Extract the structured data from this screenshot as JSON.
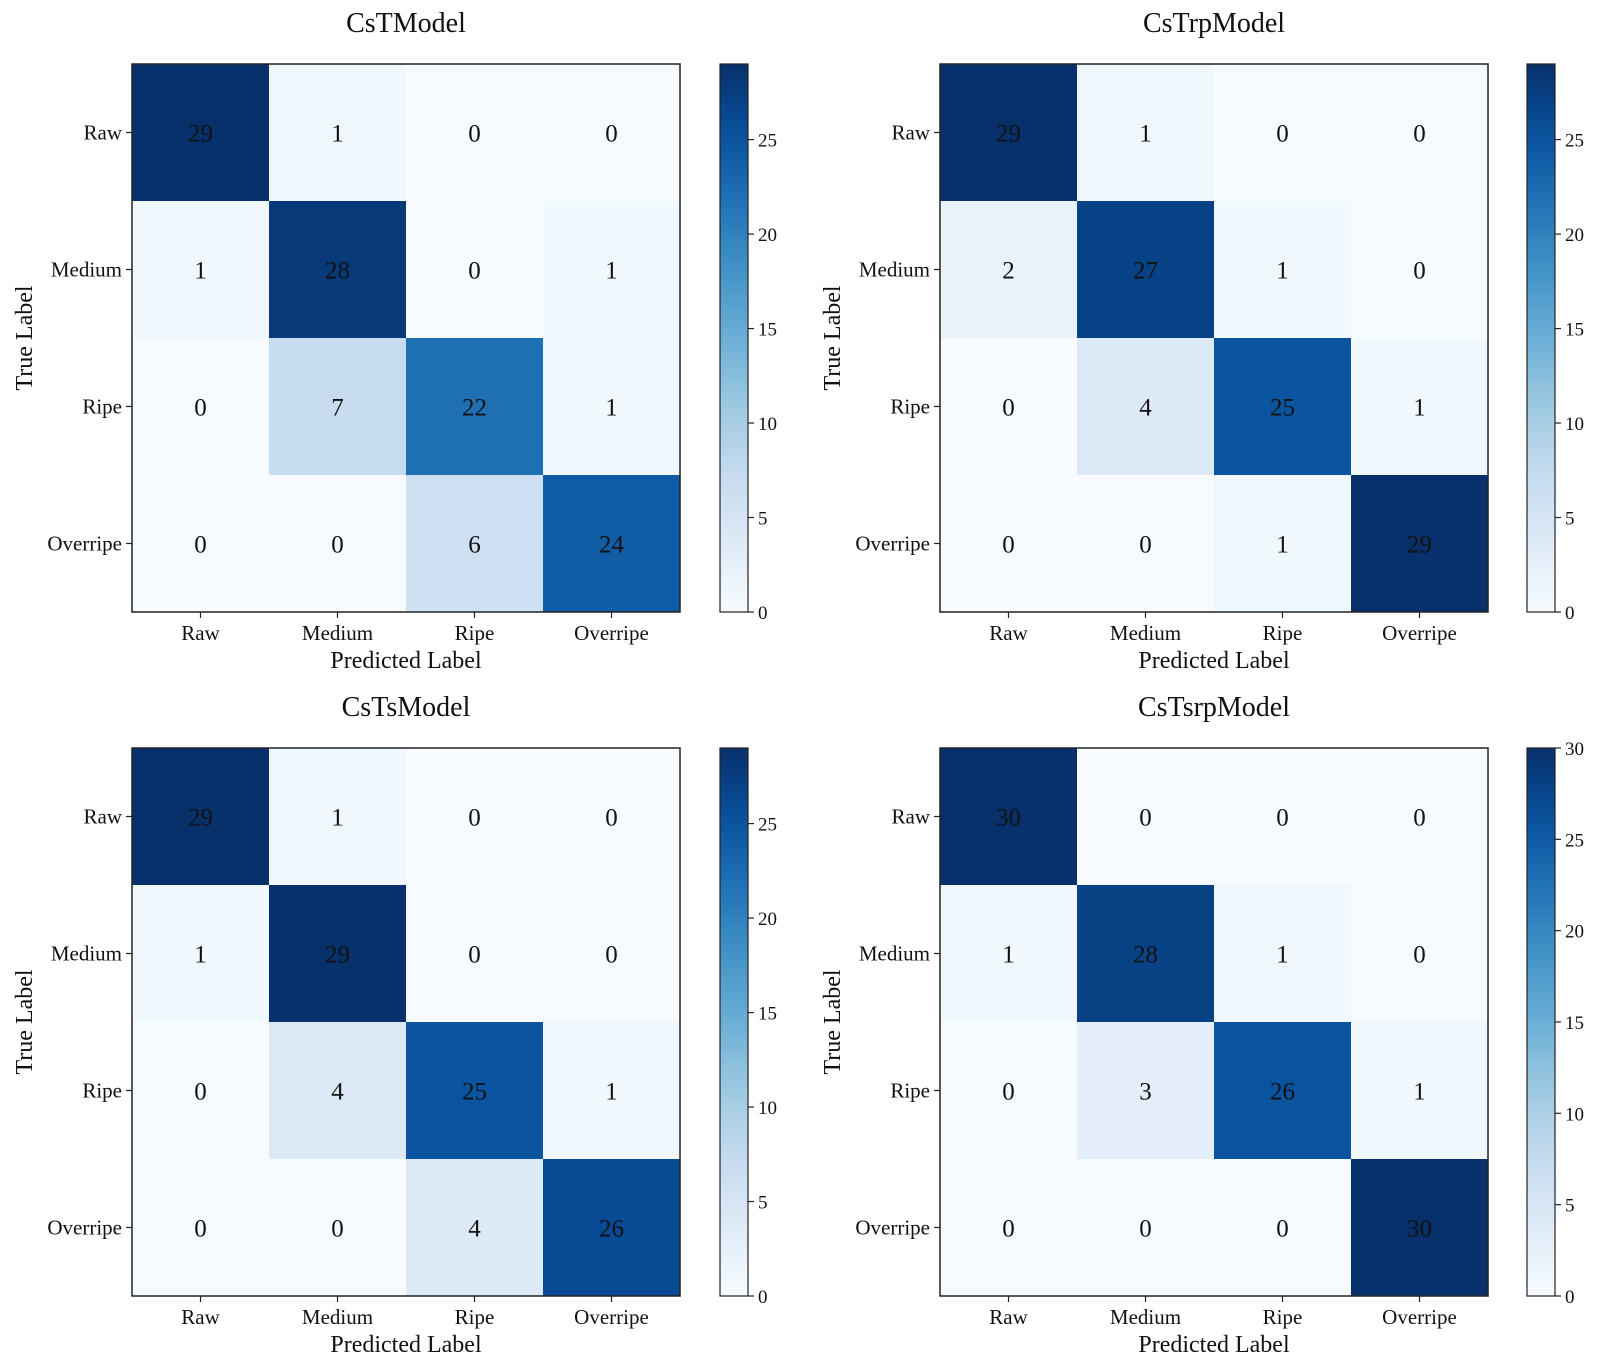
{
  "figure": {
    "description": "Confusion matrices for four models",
    "colormap": "Blues",
    "colormap_stops": [
      "#f7fbff",
      "#deebf7",
      "#c6dbef",
      "#9ecae1",
      "#6baed6",
      "#4292c6",
      "#2171b5",
      "#08519c",
      "#08306b"
    ]
  },
  "chart_data": [
    {
      "type": "heatmap",
      "title": "CsTModel",
      "xlabel": "Predicted Label",
      "ylabel": "True Label",
      "x_categories": [
        "Raw",
        "Medium",
        "Ripe",
        "Overripe"
      ],
      "y_categories": [
        "Raw",
        "Medium",
        "Ripe",
        "Overripe"
      ],
      "matrix": [
        [
          29,
          1,
          0,
          0
        ],
        [
          1,
          28,
          0,
          1
        ],
        [
          0,
          7,
          22,
          1
        ],
        [
          0,
          0,
          6,
          24
        ]
      ],
      "colorbar": {
        "range": [
          0,
          29
        ],
        "ticks": [
          0,
          5,
          10,
          15,
          20,
          25
        ]
      }
    },
    {
      "type": "heatmap",
      "title": "CsTrpModel",
      "xlabel": "Predicted Label",
      "ylabel": "True Label",
      "x_categories": [
        "Raw",
        "Medium",
        "Ripe",
        "Overripe"
      ],
      "y_categories": [
        "Raw",
        "Medium",
        "Ripe",
        "Overripe"
      ],
      "matrix": [
        [
          29,
          1,
          0,
          0
        ],
        [
          2,
          27,
          1,
          0
        ],
        [
          0,
          4,
          25,
          1
        ],
        [
          0,
          0,
          1,
          29
        ]
      ],
      "colorbar": {
        "range": [
          0,
          29
        ],
        "ticks": [
          0,
          5,
          10,
          15,
          20,
          25
        ]
      }
    },
    {
      "type": "heatmap",
      "title": "CsTsModel",
      "xlabel": "Predicted Label",
      "ylabel": "True Label",
      "x_categories": [
        "Raw",
        "Medium",
        "Ripe",
        "Overripe"
      ],
      "y_categories": [
        "Raw",
        "Medium",
        "Ripe",
        "Overripe"
      ],
      "matrix": [
        [
          29,
          1,
          0,
          0
        ],
        [
          1,
          29,
          0,
          0
        ],
        [
          0,
          4,
          25,
          1
        ],
        [
          0,
          0,
          4,
          26
        ]
      ],
      "colorbar": {
        "range": [
          0,
          29
        ],
        "ticks": [
          0,
          5,
          10,
          15,
          20,
          25
        ]
      }
    },
    {
      "type": "heatmap",
      "title": "CsTsrpModel",
      "xlabel": "Predicted Label",
      "ylabel": "True Label",
      "x_categories": [
        "Raw",
        "Medium",
        "Ripe",
        "Overripe"
      ],
      "y_categories": [
        "Raw",
        "Medium",
        "Ripe",
        "Overripe"
      ],
      "matrix": [
        [
          30,
          0,
          0,
          0
        ],
        [
          1,
          28,
          1,
          0
        ],
        [
          0,
          3,
          26,
          1
        ],
        [
          0,
          0,
          0,
          30
        ]
      ],
      "colorbar": {
        "range": [
          0,
          30
        ],
        "ticks": [
          0,
          5,
          10,
          15,
          20,
          25,
          30
        ]
      }
    }
  ]
}
